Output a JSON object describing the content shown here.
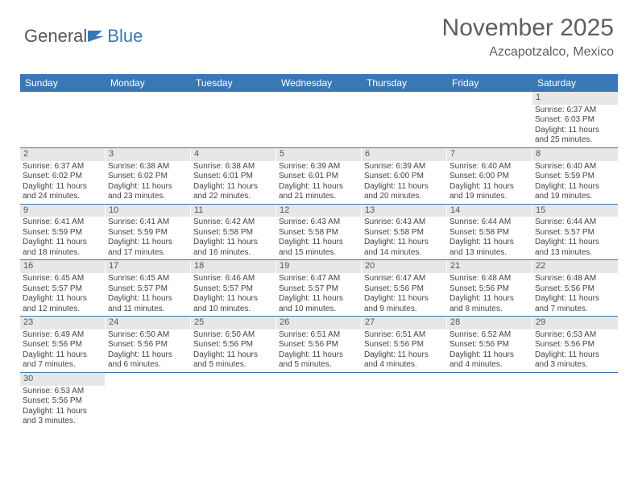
{
  "logo": {
    "first": "General",
    "second": "Blue",
    "flag_color": "#3a78b5"
  },
  "title": "November 2025",
  "location": "Azcapotzalco, Mexico",
  "colors": {
    "header_bg": "#3a78b5",
    "header_text": "#ffffff",
    "daynum_bg": "#e7e7e7",
    "row_border": "#3a78b5",
    "text": "#444444"
  },
  "weekdays": [
    "Sunday",
    "Monday",
    "Tuesday",
    "Wednesday",
    "Thursday",
    "Friday",
    "Saturday"
  ],
  "weeks": [
    [
      {
        "empty": true
      },
      {
        "empty": true
      },
      {
        "empty": true
      },
      {
        "empty": true
      },
      {
        "empty": true
      },
      {
        "empty": true
      },
      {
        "day": "1",
        "sunrise": "Sunrise: 6:37 AM",
        "sunset": "Sunset: 6:03 PM",
        "daylight1": "Daylight: 11 hours",
        "daylight2": "and 25 minutes."
      }
    ],
    [
      {
        "day": "2",
        "sunrise": "Sunrise: 6:37 AM",
        "sunset": "Sunset: 6:02 PM",
        "daylight1": "Daylight: 11 hours",
        "daylight2": "and 24 minutes."
      },
      {
        "day": "3",
        "sunrise": "Sunrise: 6:38 AM",
        "sunset": "Sunset: 6:02 PM",
        "daylight1": "Daylight: 11 hours",
        "daylight2": "and 23 minutes."
      },
      {
        "day": "4",
        "sunrise": "Sunrise: 6:38 AM",
        "sunset": "Sunset: 6:01 PM",
        "daylight1": "Daylight: 11 hours",
        "daylight2": "and 22 minutes."
      },
      {
        "day": "5",
        "sunrise": "Sunrise: 6:39 AM",
        "sunset": "Sunset: 6:01 PM",
        "daylight1": "Daylight: 11 hours",
        "daylight2": "and 21 minutes."
      },
      {
        "day": "6",
        "sunrise": "Sunrise: 6:39 AM",
        "sunset": "Sunset: 6:00 PM",
        "daylight1": "Daylight: 11 hours",
        "daylight2": "and 20 minutes."
      },
      {
        "day": "7",
        "sunrise": "Sunrise: 6:40 AM",
        "sunset": "Sunset: 6:00 PM",
        "daylight1": "Daylight: 11 hours",
        "daylight2": "and 19 minutes."
      },
      {
        "day": "8",
        "sunrise": "Sunrise: 6:40 AM",
        "sunset": "Sunset: 5:59 PM",
        "daylight1": "Daylight: 11 hours",
        "daylight2": "and 19 minutes."
      }
    ],
    [
      {
        "day": "9",
        "sunrise": "Sunrise: 6:41 AM",
        "sunset": "Sunset: 5:59 PM",
        "daylight1": "Daylight: 11 hours",
        "daylight2": "and 18 minutes."
      },
      {
        "day": "10",
        "sunrise": "Sunrise: 6:41 AM",
        "sunset": "Sunset: 5:59 PM",
        "daylight1": "Daylight: 11 hours",
        "daylight2": "and 17 minutes."
      },
      {
        "day": "11",
        "sunrise": "Sunrise: 6:42 AM",
        "sunset": "Sunset: 5:58 PM",
        "daylight1": "Daylight: 11 hours",
        "daylight2": "and 16 minutes."
      },
      {
        "day": "12",
        "sunrise": "Sunrise: 6:43 AM",
        "sunset": "Sunset: 5:58 PM",
        "daylight1": "Daylight: 11 hours",
        "daylight2": "and 15 minutes."
      },
      {
        "day": "13",
        "sunrise": "Sunrise: 6:43 AM",
        "sunset": "Sunset: 5:58 PM",
        "daylight1": "Daylight: 11 hours",
        "daylight2": "and 14 minutes."
      },
      {
        "day": "14",
        "sunrise": "Sunrise: 6:44 AM",
        "sunset": "Sunset: 5:58 PM",
        "daylight1": "Daylight: 11 hours",
        "daylight2": "and 13 minutes."
      },
      {
        "day": "15",
        "sunrise": "Sunrise: 6:44 AM",
        "sunset": "Sunset: 5:57 PM",
        "daylight1": "Daylight: 11 hours",
        "daylight2": "and 13 minutes."
      }
    ],
    [
      {
        "day": "16",
        "sunrise": "Sunrise: 6:45 AM",
        "sunset": "Sunset: 5:57 PM",
        "daylight1": "Daylight: 11 hours",
        "daylight2": "and 12 minutes."
      },
      {
        "day": "17",
        "sunrise": "Sunrise: 6:45 AM",
        "sunset": "Sunset: 5:57 PM",
        "daylight1": "Daylight: 11 hours",
        "daylight2": "and 11 minutes."
      },
      {
        "day": "18",
        "sunrise": "Sunrise: 6:46 AM",
        "sunset": "Sunset: 5:57 PM",
        "daylight1": "Daylight: 11 hours",
        "daylight2": "and 10 minutes."
      },
      {
        "day": "19",
        "sunrise": "Sunrise: 6:47 AM",
        "sunset": "Sunset: 5:57 PM",
        "daylight1": "Daylight: 11 hours",
        "daylight2": "and 10 minutes."
      },
      {
        "day": "20",
        "sunrise": "Sunrise: 6:47 AM",
        "sunset": "Sunset: 5:56 PM",
        "daylight1": "Daylight: 11 hours",
        "daylight2": "and 9 minutes."
      },
      {
        "day": "21",
        "sunrise": "Sunrise: 6:48 AM",
        "sunset": "Sunset: 5:56 PM",
        "daylight1": "Daylight: 11 hours",
        "daylight2": "and 8 minutes."
      },
      {
        "day": "22",
        "sunrise": "Sunrise: 6:48 AM",
        "sunset": "Sunset: 5:56 PM",
        "daylight1": "Daylight: 11 hours",
        "daylight2": "and 7 minutes."
      }
    ],
    [
      {
        "day": "23",
        "sunrise": "Sunrise: 6:49 AM",
        "sunset": "Sunset: 5:56 PM",
        "daylight1": "Daylight: 11 hours",
        "daylight2": "and 7 minutes."
      },
      {
        "day": "24",
        "sunrise": "Sunrise: 6:50 AM",
        "sunset": "Sunset: 5:56 PM",
        "daylight1": "Daylight: 11 hours",
        "daylight2": "and 6 minutes."
      },
      {
        "day": "25",
        "sunrise": "Sunrise: 6:50 AM",
        "sunset": "Sunset: 5:56 PM",
        "daylight1": "Daylight: 11 hours",
        "daylight2": "and 5 minutes."
      },
      {
        "day": "26",
        "sunrise": "Sunrise: 6:51 AM",
        "sunset": "Sunset: 5:56 PM",
        "daylight1": "Daylight: 11 hours",
        "daylight2": "and 5 minutes."
      },
      {
        "day": "27",
        "sunrise": "Sunrise: 6:51 AM",
        "sunset": "Sunset: 5:56 PM",
        "daylight1": "Daylight: 11 hours",
        "daylight2": "and 4 minutes."
      },
      {
        "day": "28",
        "sunrise": "Sunrise: 6:52 AM",
        "sunset": "Sunset: 5:56 PM",
        "daylight1": "Daylight: 11 hours",
        "daylight2": "and 4 minutes."
      },
      {
        "day": "29",
        "sunrise": "Sunrise: 6:53 AM",
        "sunset": "Sunset: 5:56 PM",
        "daylight1": "Daylight: 11 hours",
        "daylight2": "and 3 minutes."
      }
    ],
    [
      {
        "day": "30",
        "sunrise": "Sunrise: 6:53 AM",
        "sunset": "Sunset: 5:56 PM",
        "daylight1": "Daylight: 11 hours",
        "daylight2": "and 3 minutes."
      },
      {
        "empty": true
      },
      {
        "empty": true
      },
      {
        "empty": true
      },
      {
        "empty": true
      },
      {
        "empty": true
      },
      {
        "empty": true
      }
    ]
  ]
}
